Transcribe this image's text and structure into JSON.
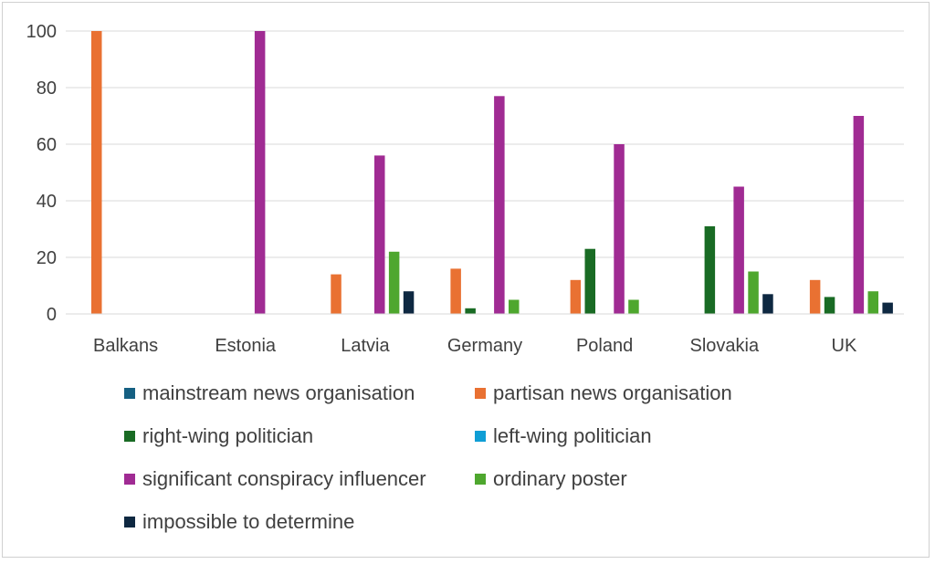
{
  "chart_data": {
    "type": "bar",
    "title": "",
    "xlabel": "",
    "ylabel": "",
    "ylim": [
      0,
      100
    ],
    "yticks": [
      0,
      20,
      40,
      60,
      80,
      100
    ],
    "grid": true,
    "legend_position": "bottom",
    "categories": [
      "Balkans",
      "Estonia",
      "Latvia",
      "Germany",
      "Poland",
      "Slovakia",
      "UK"
    ],
    "series": [
      {
        "name": "mainstream news organisation",
        "color": "#156082",
        "values": [
          0,
          0,
          0,
          0,
          0,
          0,
          0
        ]
      },
      {
        "name": "partisan news organisation",
        "color": "#E97132",
        "values": [
          100,
          0,
          14,
          16,
          12,
          0,
          12
        ]
      },
      {
        "name": "right-wing politician",
        "color": "#196B24",
        "values": [
          0,
          0,
          0,
          2,
          23,
          31,
          6
        ]
      },
      {
        "name": "left-wing politician",
        "color": "#0F9ED5",
        "values": [
          0,
          0,
          0,
          0,
          0,
          0,
          0
        ]
      },
      {
        "name": "significant conspiracy influencer",
        "color": "#A02B93",
        "values": [
          0,
          100,
          56,
          77,
          60,
          45,
          70
        ]
      },
      {
        "name": "ordinary poster",
        "color": "#4EA72E",
        "values": [
          0,
          0,
          22,
          5,
          5,
          15,
          8
        ]
      },
      {
        "name": "impossible to determine",
        "color": "#0E2841",
        "values": [
          0,
          0,
          8,
          0,
          0,
          7,
          4
        ]
      }
    ]
  }
}
